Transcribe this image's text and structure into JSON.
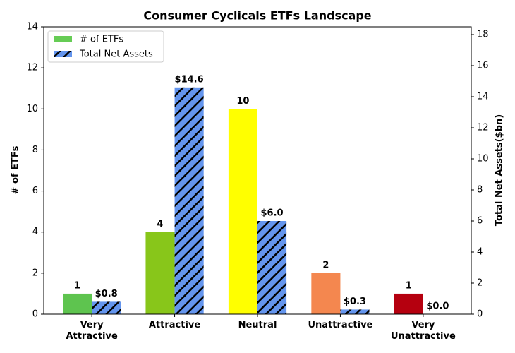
{
  "chart_data": {
    "type": "bar",
    "title": "Consumer Cyclicals ETFs Landscape",
    "categories": [
      "Very\nAttractive",
      "Attractive",
      "Neutral",
      "Unattractive",
      "Very\nUnattractive"
    ],
    "series": [
      {
        "name": "# of ETFs",
        "color": "#66cc55",
        "colors": [
          "#5ec44f",
          "#88c61a",
          "#ffff00",
          "#f4874f",
          "#b5000f"
        ],
        "values": [
          1,
          4,
          10,
          2,
          1
        ]
      },
      {
        "name": "Total Net Assets",
        "color": "#6495ed",
        "hatch": true,
        "axis": "y2",
        "values": [
          0.8,
          14.6,
          6.0,
          0.3,
          0.0
        ],
        "value_labels": [
          "$0.8",
          "$14.6",
          "$6.0",
          "$0.3",
          "$0.0"
        ]
      }
    ],
    "ylabel": "# of ETFs",
    "y2label": "Total Net Assets($bn)",
    "ylim": [
      0,
      14
    ],
    "yticks": [
      0,
      2,
      4,
      6,
      8,
      10,
      12,
      14
    ],
    "y2lim": [
      0,
      18.5
    ],
    "y2ticks": [
      0,
      2,
      4,
      6,
      8,
      10,
      12,
      14,
      16,
      18
    ],
    "legend": "upper left"
  }
}
